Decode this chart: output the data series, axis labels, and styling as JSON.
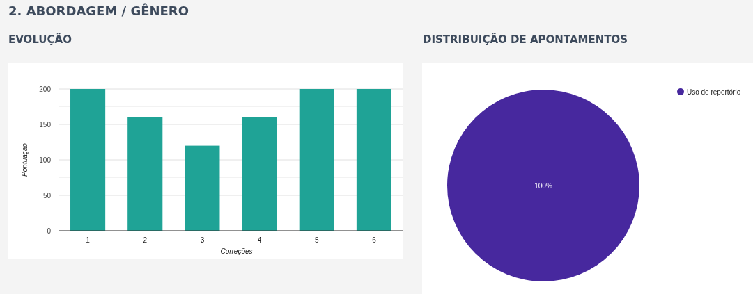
{
  "chart_data": [
    {
      "type": "bar",
      "title": "EVOLUÇÃO",
      "annotations": [
        "2. ABORDAGEM / GÊNERO"
      ],
      "categories": [
        "1",
        "2",
        "3",
        "4",
        "5",
        "6"
      ],
      "values": [
        200,
        160,
        120,
        160,
        200,
        200
      ],
      "color": "#1fa396",
      "xlabel": "Correções",
      "ylabel": "Pontuação",
      "ylim": [
        0,
        200
      ],
      "yticks": [
        0,
        {
          "value": 25,
          "label": null
        },
        50,
        {
          "value": 75,
          "label": null
        },
        100,
        {
          "value": 125,
          "label": null
        },
        150,
        {
          "value": 175,
          "label": null
        },
        200
      ],
      "grid": "y"
    },
    {
      "type": "pie",
      "title": "DISTRIBUIÇÃO DE APONTAMENTOS",
      "categories": [
        "Uso de repertório"
      ],
      "values": [
        100
      ],
      "colors": [
        "#47289e"
      ],
      "value_labels": [
        "100%"
      ],
      "legend": "top right"
    }
  ]
}
